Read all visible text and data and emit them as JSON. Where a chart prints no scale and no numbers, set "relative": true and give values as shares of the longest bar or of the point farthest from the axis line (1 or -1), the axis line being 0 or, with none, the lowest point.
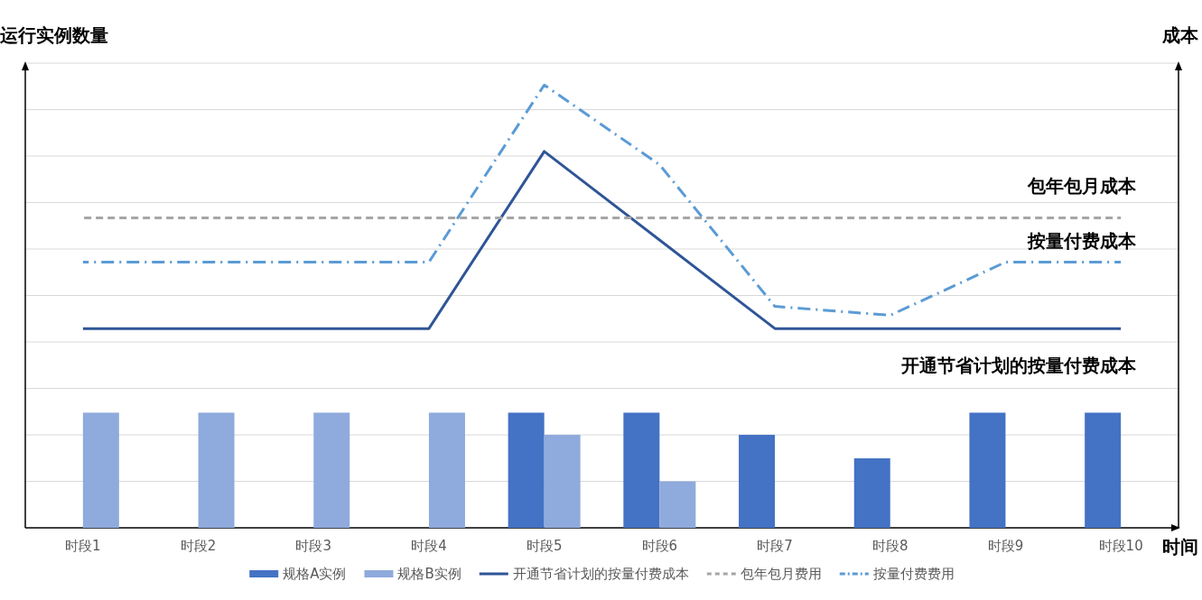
{
  "chart_data": {
    "type": "bar",
    "relative": true,
    "xlabel": "时间",
    "categories": [
      "时段1",
      "时段2",
      "时段3",
      "时段4",
      "时段5",
      "时段6",
      "时段7",
      "时段8",
      "时段9",
      "时段10"
    ],
    "series": [
      {
        "name": "规格A实例",
        "color": "#4472c4",
        "values": [
          null,
          null,
          null,
          null,
          0.26,
          0.26,
          0.21,
          0.157,
          0.26,
          0.26
        ]
      },
      {
        "name": "规格B实例",
        "color": "#8faadc",
        "values": [
          0.26,
          0.26,
          0.26,
          0.26,
          0.21,
          0.105,
          null,
          null,
          null,
          null
        ]
      },
      {
        "name": "开通节省计划的按量付费成本",
        "type": "line",
        "color": "#2f5597",
        "line_style": "solid",
        "values": [
          0.45,
          0.45,
          0.45,
          0.45,
          0.85,
          0.65,
          0.45,
          0.45,
          0.45,
          0.45
        ]
      },
      {
        "name": "包年包月费用",
        "type": "line",
        "color": "#a6a6a6",
        "line_style": "dashed",
        "values": [
          0.7,
          0.7,
          0.7,
          0.7,
          0.7,
          0.7,
          0.7,
          0.7,
          0.7,
          0.7
        ]
      },
      {
        "name": "按量付费费用",
        "type": "line",
        "color": "#5b9bd5",
        "line_style": "dashdot",
        "values": [
          0.6,
          0.6,
          0.6,
          0.6,
          1,
          0.82,
          0.5,
          0.48,
          0.6,
          0.6
        ]
      }
    ],
    "annotations": [
      "运行实例数量",
      "成本",
      "包年包月成本",
      "按量付费成本",
      "开通节省计划的按量付费成本"
    ],
    "grid": "y",
    "legend": "bottom"
  }
}
